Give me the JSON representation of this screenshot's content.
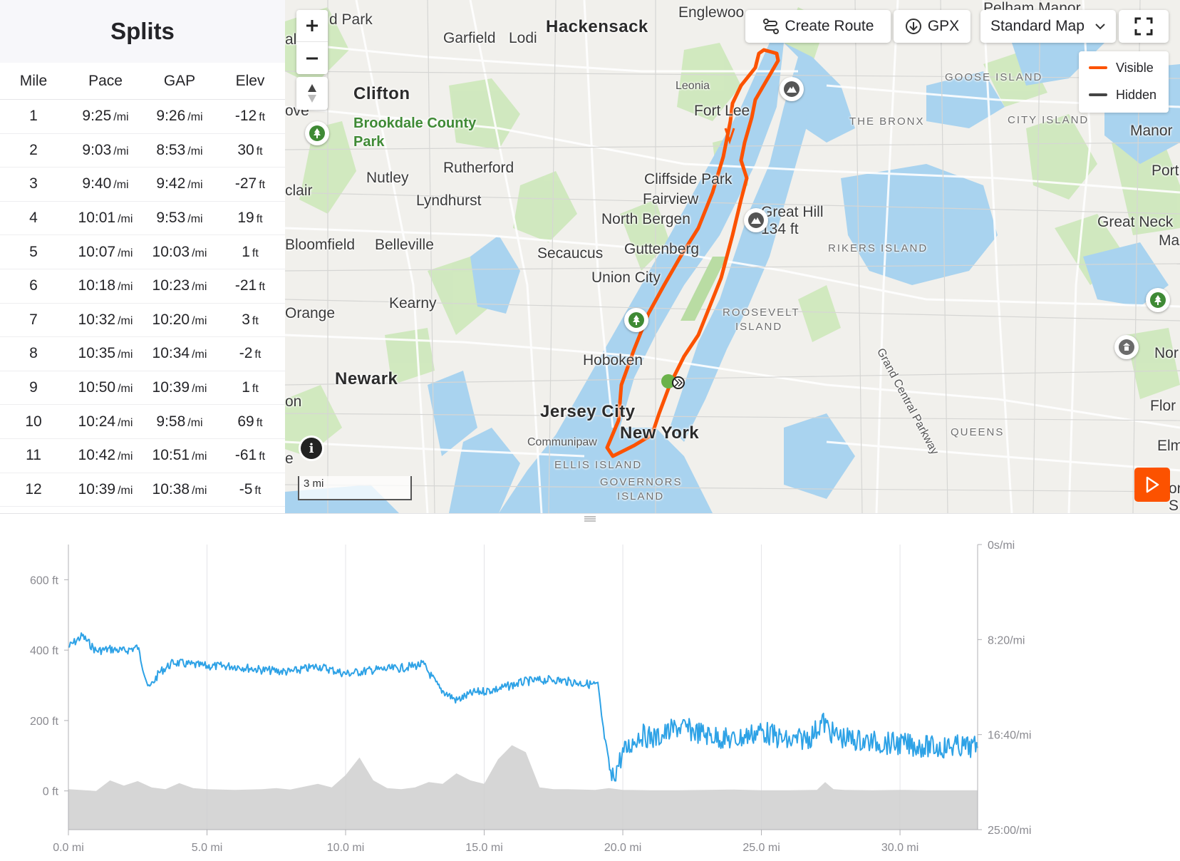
{
  "splits": {
    "title": "Splits",
    "headers": {
      "mile": "Mile",
      "pace": "Pace",
      "gap": "GAP",
      "elev": "Elev"
    },
    "pace_unit": "/mi",
    "elev_unit": "ft",
    "rows": [
      {
        "mile": "1",
        "pace": "9:25",
        "gap": "9:26",
        "elev": "-12"
      },
      {
        "mile": "2",
        "pace": "9:03",
        "gap": "8:53",
        "elev": "30"
      },
      {
        "mile": "3",
        "pace": "9:40",
        "gap": "9:42",
        "elev": "-27"
      },
      {
        "mile": "4",
        "pace": "10:01",
        "gap": "9:53",
        "elev": "19"
      },
      {
        "mile": "5",
        "pace": "10:07",
        "gap": "10:03",
        "elev": "1"
      },
      {
        "mile": "6",
        "pace": "10:18",
        "gap": "10:23",
        "elev": "-21"
      },
      {
        "mile": "7",
        "pace": "10:32",
        "gap": "10:20",
        "elev": "3"
      },
      {
        "mile": "8",
        "pace": "10:35",
        "gap": "10:34",
        "elev": "-2"
      },
      {
        "mile": "9",
        "pace": "10:50",
        "gap": "10:39",
        "elev": "1"
      },
      {
        "mile": "10",
        "pace": "10:24",
        "gap": "9:58",
        "elev": "69"
      },
      {
        "mile": "11",
        "pace": "10:42",
        "gap": "10:51",
        "elev": "-61"
      },
      {
        "mile": "12",
        "pace": "10:39",
        "gap": "10:38",
        "elev": "-5"
      }
    ]
  },
  "map": {
    "toolbar": {
      "create_route": "Create Route",
      "gpx": "GPX",
      "map_style": "Standard Map"
    },
    "legend": {
      "visible": "Visible",
      "hidden": "Hidden"
    },
    "scale": "3 mi",
    "info": "i",
    "route_color": "#fc5200",
    "water_color": "#a9d3ef",
    "park_color": "#c8e6b4",
    "labels": {
      "park_top": "d Park",
      "garfield": "Garfield",
      "lodi": "Lodi",
      "hackensack": "Hackensack",
      "englewood": "Englewoo",
      "pelham": "Pelham Manor",
      "alla": "alla",
      "clifton": "Clifton",
      "leonia": "Leonia",
      "fort_lee": "Fort Lee",
      "goose_island": "GOOSE ISLAND",
      "the_bronx": "THE BRONX",
      "city_island": "CITY ISLAND",
      "manor": "Manor",
      "ove": "ove",
      "brookdale1": "Brookdale County",
      "brookdale2": "Park",
      "port": "Port",
      "nutley": "Nutley",
      "rutherford": "Rutherford",
      "cliffside": "Cliffside Park",
      "clair": "clair",
      "lyndhurst": "Lyndhurst",
      "fairview": "Fairview",
      "great_hill": "Great Hill",
      "great_hill_elev": "134 ft",
      "north_bergen": "North Bergen",
      "great_neck": "Great Neck",
      "ma": "Ma",
      "bloomfield": "Bloomfield",
      "belleville": "Belleville",
      "secaucus": "Secaucus",
      "guttenberg": "Guttenberg",
      "rikers": "RIKERS ISLAND",
      "union_city": "Union City",
      "kearny": "Kearny",
      "orange": "Orange",
      "roosevelt1": "ROOSEVELT",
      "roosevelt2": "ISLAND",
      "grand_central": "Grand Central Parkway",
      "nor": "Nor",
      "hoboken": "Hoboken",
      "newark": "Newark",
      "on": "on",
      "jersey_city": "Jersey City",
      "flo": "Flor",
      "new_york": "New York",
      "communipaw": "Communipaw",
      "queens": "QUEENS",
      "elm": "Elm",
      "ellis": "ELLIS ISLAND",
      "governors1": "GOVERNORS",
      "governors2": "ISLAND",
      "e": "e",
      "s": "S",
      "or": "or"
    }
  },
  "chart_data": {
    "type": "line",
    "x_unit": "mi",
    "xlim": [
      0,
      32.8
    ],
    "x_ticks": [
      "0.0 mi",
      "5.0 mi",
      "10.0 mi",
      "15.0 mi",
      "20.0 mi",
      "25.0 mi",
      "30.0 mi"
    ],
    "x_tick_values": [
      0,
      5,
      10,
      15,
      20,
      25,
      30
    ],
    "y_left": {
      "unit": "ft",
      "ticks": [
        "0 ft",
        "200 ft",
        "400 ft",
        "600 ft"
      ],
      "tick_values": [
        0,
        200,
        400,
        600
      ],
      "ylim": [
        -110,
        700
      ]
    },
    "y_right": {
      "unit": "s/mi",
      "ticks": [
        "0s/mi",
        "8:20/mi",
        "16:40/mi",
        "25:00/mi"
      ],
      "tick_values_sec": [
        0,
        500,
        1000,
        1500
      ],
      "ylim_sec": [
        0,
        1500
      ],
      "inverted": true
    },
    "series": [
      {
        "kind": "elevation",
        "color": "#cfcfcf",
        "x": [
          0,
          1,
          1.5,
          2,
          2.5,
          3,
          3.5,
          4,
          4.5,
          5,
          6,
          7,
          7.5,
          8,
          8.5,
          9,
          9.5,
          10,
          10.5,
          11,
          11.5,
          12,
          12.5,
          13,
          13.5,
          14,
          14.5,
          15,
          15.5,
          16,
          16.5,
          17,
          17.5,
          18,
          18.5,
          19,
          19.5,
          20,
          21,
          22,
          23,
          24,
          25,
          26,
          27,
          27.3,
          27.6,
          28,
          29,
          30,
          31,
          32,
          32.8
        ],
        "values": [
          5,
          0,
          30,
          15,
          28,
          10,
          5,
          22,
          8,
          5,
          3,
          5,
          8,
          4,
          12,
          20,
          10,
          45,
          95,
          30,
          8,
          5,
          10,
          25,
          20,
          50,
          30,
          20,
          90,
          130,
          110,
          10,
          5,
          5,
          4,
          3,
          8,
          3,
          2,
          2,
          3,
          4,
          2,
          2,
          3,
          25,
          5,
          3,
          2,
          3,
          2,
          2,
          2
        ]
      },
      {
        "kind": "pace",
        "color": "#2ea2e6",
        "x": [
          0,
          0.5,
          1,
          1.5,
          2,
          2.5,
          2.9,
          3.3,
          3.8,
          4.3,
          5,
          6,
          7,
          8,
          9,
          9.5,
          10,
          11,
          12,
          12.8,
          13.4,
          14,
          14.6,
          15.5,
          16.5,
          17.5,
          18.5,
          19.1,
          19.3,
          19.6,
          20,
          20.6,
          21.2,
          22,
          23,
          24,
          25,
          26,
          26.8,
          27.2,
          27.6,
          28,
          29,
          30,
          30.8,
          31.4,
          32,
          32.8
        ],
        "values_sec": [
          540,
          480,
          560,
          550,
          560,
          540,
          760,
          670,
          620,
          630,
          640,
          640,
          660,
          670,
          640,
          660,
          680,
          660,
          650,
          630,
          760,
          820,
          780,
          760,
          720,
          710,
          730,
          740,
          980,
          1240,
          1100,
          1000,
          1020,
          960,
          1000,
          1030,
          980,
          1040,
          1010,
          930,
          1000,
          1020,
          1040,
          1050,
          1060,
          1070,
          1060,
          1070
        ]
      }
    ]
  }
}
